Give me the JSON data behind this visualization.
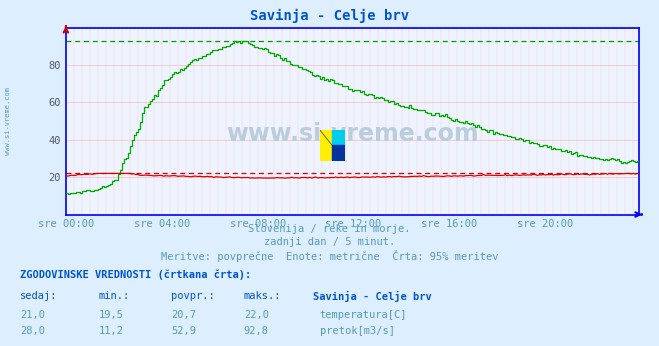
{
  "title": "Savinja - Celje brv",
  "title_color": "#0055cc",
  "bg_color": "#ddeeff",
  "plot_bg_color": "#eef4ff",
  "subtitle_lines": [
    "Slovenija / reke in morje.",
    "zadnji dan / 5 minut.",
    "Meritve: povprečne  Enote: metrične  Črta: 95% meritev"
  ],
  "subtitle_color": "#5599bb",
  "xlabel_ticks": [
    "sre 00:00",
    "sre 04:00",
    "sre 08:00",
    "sre 12:00",
    "sre 16:00",
    "sre 20:00"
  ],
  "xlabel_tick_pos": [
    0,
    48,
    96,
    144,
    192,
    240
  ],
  "total_points": 288,
  "ylim": [
    0,
    100
  ],
  "yticks": [
    20,
    40,
    60,
    80
  ],
  "grid_color": "#ffaaaa",
  "temp_color": "#dd0000",
  "temp_dashed_color": "#dd0000",
  "flow_color": "#00aa00",
  "flow_dashed_color": "#009900",
  "axis_color": "#0000ee",
  "watermark_text": "www.si-vreme.com",
  "watermark_color": "#bbccdd",
  "legend_header": "ZGODOVINSKE VREDNOSTI (črtkana črta):",
  "legend_cols": [
    "sedaj:",
    "min.:",
    "povpr.:",
    "maks.:",
    "Savinja - Celje brv"
  ],
  "temp_row": [
    "21,0",
    "19,5",
    "20,7",
    "22,0",
    "temperatura[C]"
  ],
  "temp_icon_color": "#cc0000",
  "flow_row": [
    "28,0",
    "11,2",
    "52,9",
    "92,8",
    "pretok[m3/s]"
  ],
  "flow_icon_color": "#00aa00",
  "temp_sedaj": 21.0,
  "temp_min": 19.5,
  "temp_avg": 20.7,
  "temp_max": 22.0,
  "flow_sedaj": 28.0,
  "flow_min": 11.2,
  "flow_avg": 52.9,
  "flow_max": 92.8
}
